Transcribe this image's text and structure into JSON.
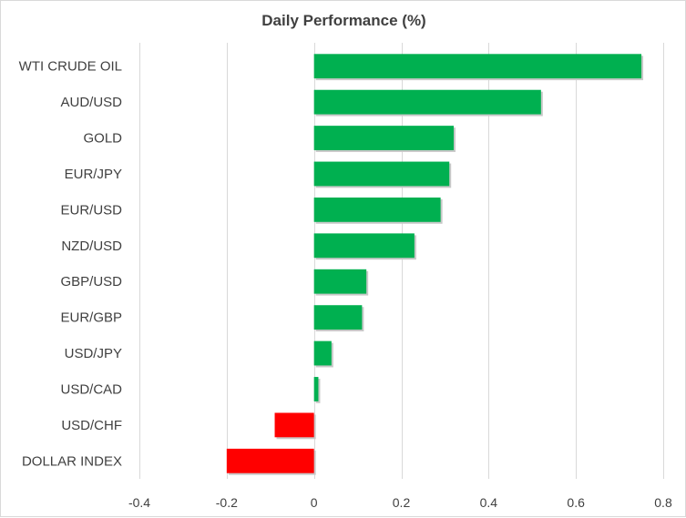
{
  "chart_data": {
    "type": "bar",
    "orientation": "horizontal",
    "title": "Daily Performance  (%)",
    "xlabel": "",
    "ylabel": "",
    "xlim": [
      -0.4,
      0.8
    ],
    "xticks": [
      -0.4,
      -0.2,
      0,
      0.2,
      0.4,
      0.6,
      0.8
    ],
    "xtick_labels": [
      "-0.4",
      "-0.2",
      "0",
      "0.2",
      "0.4",
      "0.6",
      "0.8"
    ],
    "grid": "vertical",
    "categories": [
      "WTI CRUDE OIL",
      "AUD/USD",
      "GOLD",
      "EUR/JPY",
      "EUR/USD",
      "NZD/USD",
      "GBP/USD",
      "EUR/GBP",
      "USD/JPY",
      "USD/CAD",
      "USD/CHF",
      "DOLLAR INDEX"
    ],
    "values": [
      0.75,
      0.52,
      0.32,
      0.31,
      0.29,
      0.23,
      0.12,
      0.11,
      0.04,
      0.01,
      -0.09,
      -0.2
    ],
    "colors": {
      "positive": "#00b050",
      "negative": "#ff0000",
      "grid": "#d9d9d9",
      "text": "#404040"
    }
  }
}
